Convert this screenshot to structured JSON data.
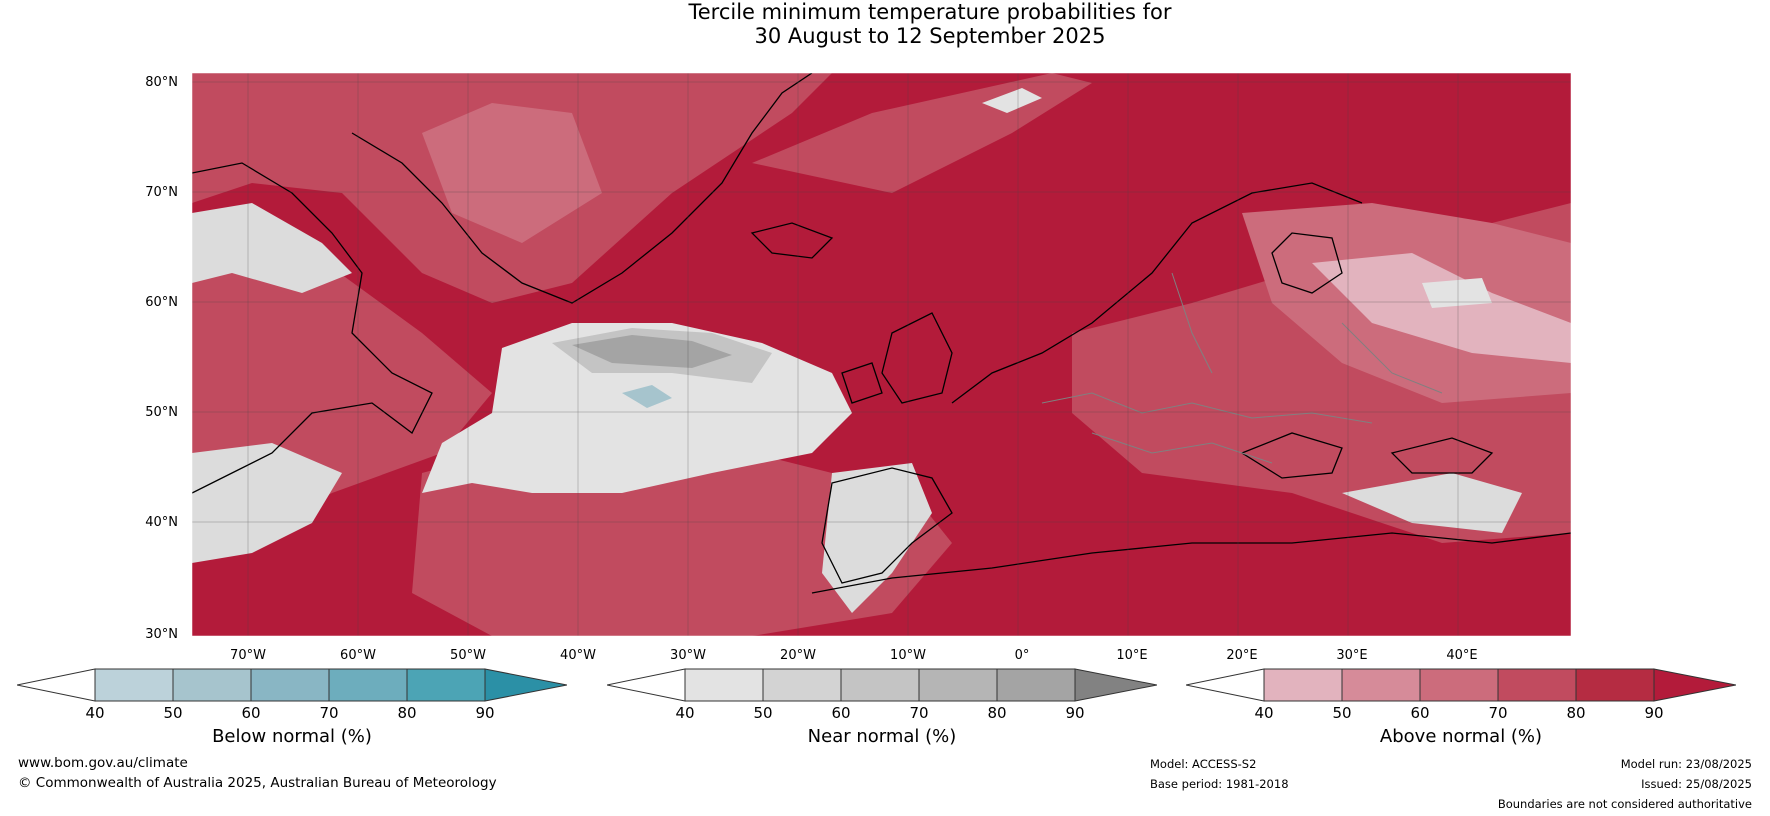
{
  "title": {
    "line1": "Tercile minimum temperature probabilities for",
    "line2": "30 August to 12 September 2025"
  },
  "latitude_labels": [
    "80°N",
    "70°N",
    "60°N",
    "50°N",
    "40°N",
    "30°N"
  ],
  "longitude_labels": [
    "70°W",
    "60°W",
    "50°W",
    "40°W",
    "30°W",
    "20°W",
    "10°W",
    "0°",
    "10°E",
    "20°E",
    "30°E",
    "40°E"
  ],
  "map": {
    "region": "North Atlantic and Europe",
    "lat_range": [
      30,
      81
    ],
    "lon_range": [
      -75,
      50
    ],
    "description_colors": {
      "above_normal_dominant": "#b31b3a",
      "near_normal_grey": "#dcdcdc"
    }
  },
  "colorbars": [
    {
      "label": "Below normal (%)",
      "ticks": [
        "40",
        "50",
        "60",
        "70",
        "80",
        "90"
      ],
      "colors": [
        "#ffffff",
        "#bcd2da",
        "#a6c4cd",
        "#89b6c4",
        "#6dadbd",
        "#4ca4b5",
        "#2b90a6"
      ]
    },
    {
      "label": "Near normal (%)",
      "ticks": [
        "40",
        "50",
        "60",
        "70",
        "80",
        "90"
      ],
      "colors": [
        "#ffffff",
        "#e3e3e3",
        "#d3d3d3",
        "#c4c4c4",
        "#b5b5b5",
        "#a4a4a4",
        "#828282"
      ]
    },
    {
      "label": "Above normal (%)",
      "ticks": [
        "40",
        "50",
        "60",
        "70",
        "80",
        "90"
      ],
      "colors": [
        "#ffffff",
        "#e2b3be",
        "#d68b99",
        "#cc6c7c",
        "#c14b5f",
        "#b52c42",
        "#b31b3a"
      ]
    }
  ],
  "footer": {
    "website": "www.bom.gov.au/climate",
    "copyright": "© Commonwealth of Australia 2025, Australian Bureau of Meteorology",
    "model": "Model: ACCESS-S2",
    "base_period": "Base period: 1981-2018",
    "model_run": "Model run: 23/08/2025",
    "issued": "Issued: 25/08/2025",
    "disclaimer": "Boundaries are not considered authoritative"
  }
}
